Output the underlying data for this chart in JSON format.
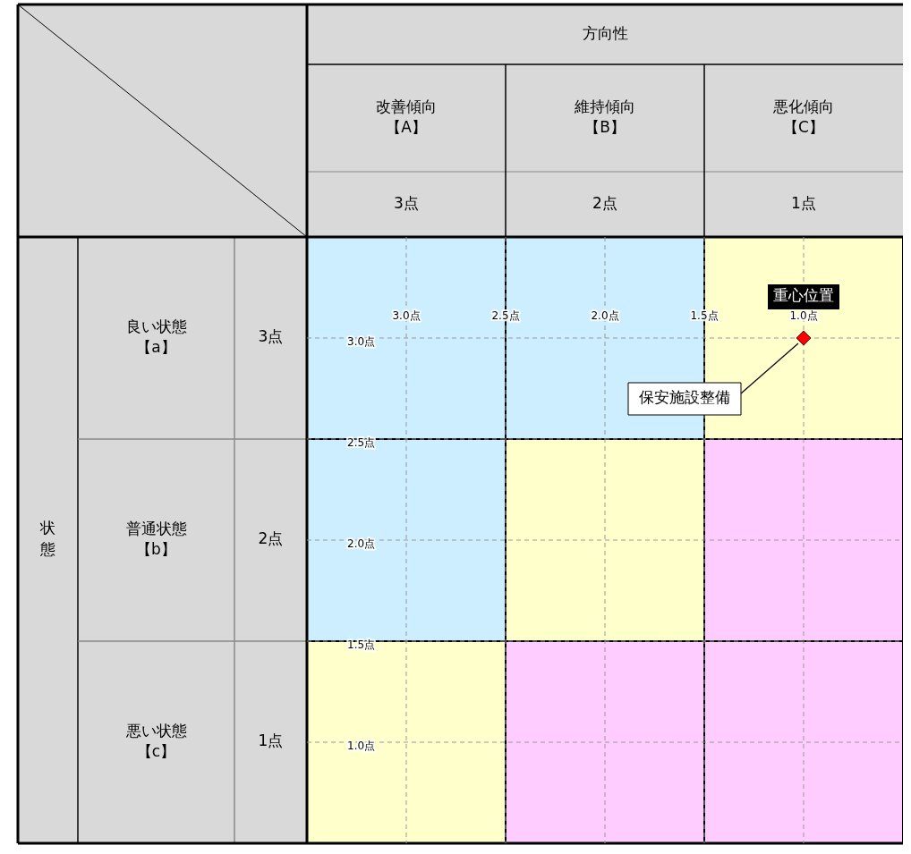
{
  "chart_data": {
    "type": "scatter",
    "xlim": [
      3.5,
      0.5
    ],
    "ylim": [
      0.5,
      3.5
    ],
    "xticks": [
      {
        "value": 3,
        "label": "3.0点"
      },
      {
        "value": 2.5,
        "label": "2.5点"
      },
      {
        "value": 2,
        "label": "2.0点"
      },
      {
        "value": 1.5,
        "label": "1.5点"
      },
      {
        "value": 1,
        "label": "1.0点"
      }
    ],
    "yticks": [
      {
        "value": 3,
        "label": "3.0点"
      },
      {
        "value": 2.5,
        "label": "2.5点"
      },
      {
        "value": 2,
        "label": "2.0点"
      },
      {
        "value": 1.5,
        "label": "1.5点"
      },
      {
        "value": 1,
        "label": "1.0点"
      }
    ],
    "series": [
      {
        "name": "重心位置",
        "color": "#ff0000",
        "x": [
          1.0
        ],
        "values": [
          3.0
        ]
      }
    ],
    "marker": "diamond",
    "grid": true,
    "legend": false,
    "annotations": [
      "方向性",
      "改善傾向【A】",
      "維持傾向【B】",
      "悪化傾向【C】",
      "3点",
      "2点",
      "1点",
      "状態",
      "良い状態【a】",
      "普通状態【b】",
      "悪い状態【c】",
      "3点",
      "2点",
      "1点",
      {
        "text": "保安施設整備",
        "x": 1.0,
        "y": 3.0
      }
    ]
  }
}
